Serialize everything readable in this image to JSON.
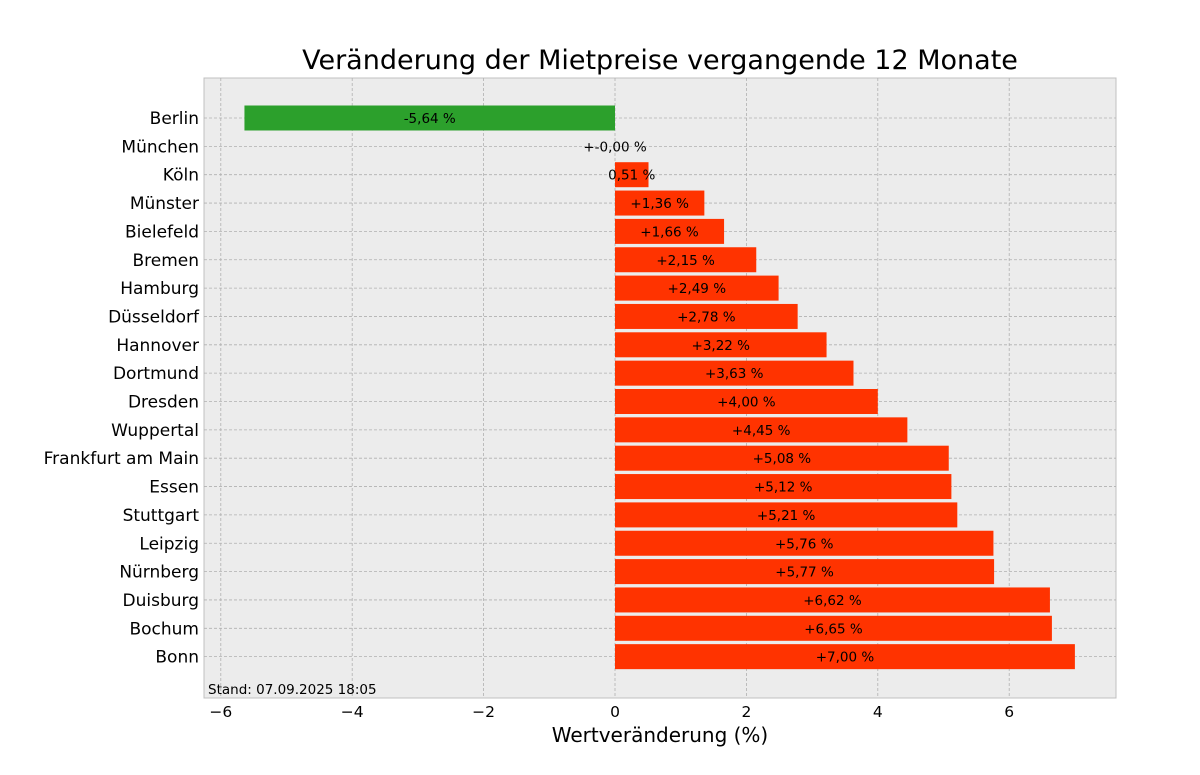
{
  "chart_data": {
    "type": "bar",
    "orientation": "horizontal",
    "title": "Veränderung der Mietpreise vergangende 12 Monate",
    "xlabel": "Wertveränderung (%)",
    "ylabel": "",
    "xlim": [
      -6.2,
      7.6
    ],
    "xticks": [
      -6,
      -4,
      -2,
      0,
      2,
      4,
      6
    ],
    "xtick_labels": [
      "−6",
      "−4",
      "−2",
      "0",
      "2",
      "4",
      "6"
    ],
    "grid": true,
    "footnote": "Stand: 07.09.2025 18:05",
    "colors": {
      "positive": "#ff3300",
      "negative": "#2ca02c",
      "background": "#ececec",
      "grid": "#b0b0b0"
    },
    "categories": [
      "Berlin",
      "München",
      "Köln",
      "Münster",
      "Bielefeld",
      "Bremen",
      "Hamburg",
      "Düsseldorf",
      "Hannover",
      "Dortmund",
      "Dresden",
      "Wuppertal",
      "Frankfurt am Main",
      "Essen",
      "Stuttgart",
      "Leipzig",
      "Nürnberg",
      "Duisburg",
      "Bochum",
      "Bonn"
    ],
    "values": [
      -5.64,
      -0.0,
      0.51,
      1.36,
      1.66,
      2.15,
      2.49,
      2.78,
      3.22,
      3.63,
      4.0,
      4.45,
      5.08,
      5.12,
      5.21,
      5.76,
      5.77,
      6.62,
      6.65,
      7.0
    ],
    "data_labels": [
      "-5,64 %",
      "+-0,00 %",
      "0,51 %",
      "+1,36 %",
      "+1,66 %",
      "+2,15 %",
      "+2,49 %",
      "+2,78 %",
      "+3,22 %",
      "+3,63 %",
      "+4,00 %",
      "+4,45 %",
      "+5,08 %",
      "+5,12 %",
      "+5,21 %",
      "+5,76 %",
      "+5,77 %",
      "+6,62 %",
      "+6,65 %",
      "+7,00 %"
    ]
  }
}
